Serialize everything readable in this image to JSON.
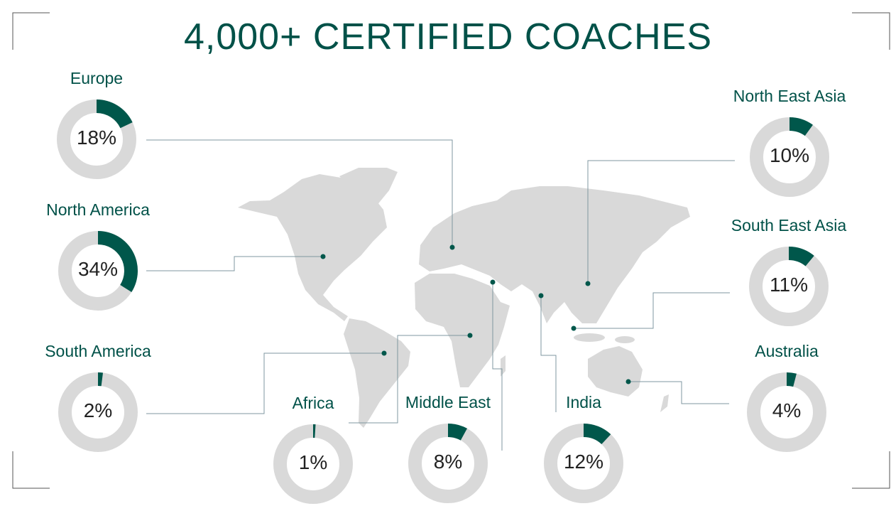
{
  "title": "4,000+ CERTIFIED COACHES",
  "colors": {
    "accent": "#00574B",
    "track": "#D9D9D9",
    "map": "#D9D9D9",
    "connector": "#7F97A0",
    "title": "#005148"
  },
  "chart_data": {
    "type": "pie",
    "variant": "donut",
    "title": "4,000+ CERTIFIED COACHES",
    "series": [
      {
        "name": "Europe",
        "value": 18,
        "label": "18%"
      },
      {
        "name": "North America",
        "value": 34,
        "label": "34%"
      },
      {
        "name": "South America",
        "value": 2,
        "label": "2%"
      },
      {
        "name": "Africa",
        "value": 1,
        "label": "1%"
      },
      {
        "name": "Middle East",
        "value": 8,
        "label": "8%"
      },
      {
        "name": "India",
        "value": 12,
        "label": "12%"
      },
      {
        "name": "North East Asia",
        "value": 10,
        "label": "10%"
      },
      {
        "name": "South East Asia",
        "value": 11,
        "label": "11%"
      },
      {
        "name": "Australia",
        "value": 4,
        "label": "4%"
      }
    ]
  }
}
